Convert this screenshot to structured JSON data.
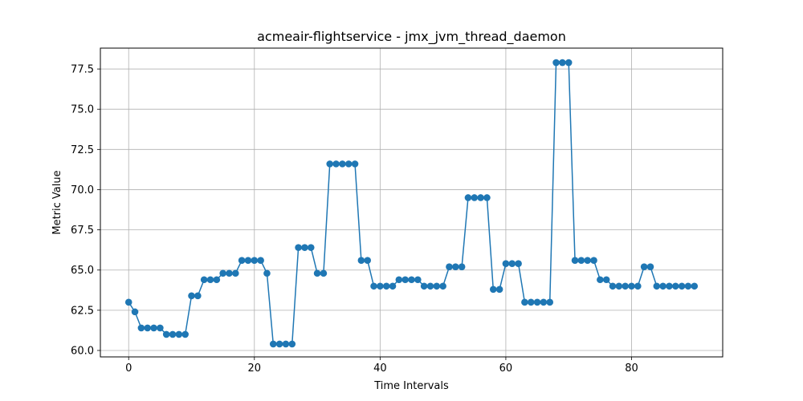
{
  "chart_data": {
    "type": "line",
    "title": "acmeair-flightservice - jmx_jvm_thread_daemon",
    "xlabel": "Time Intervals",
    "ylabel": "Metric Value",
    "xlim": [
      -4.5,
      94.5
    ],
    "ylim": [
      59.6,
      78.8
    ],
    "xticks": [
      0,
      20,
      40,
      60,
      80
    ],
    "yticks": [
      60.0,
      62.5,
      65.0,
      67.5,
      70.0,
      72.5,
      75.0,
      77.5
    ],
    "xtick_labels": [
      "0",
      "20",
      "40",
      "60",
      "80"
    ],
    "ytick_labels": [
      "60.0",
      "62.5",
      "65.0",
      "67.5",
      "70.0",
      "72.5",
      "75.0",
      "77.5"
    ],
    "grid": true,
    "marker": "circle",
    "line_color": "#1f77b4",
    "series": [
      {
        "x": [
          0,
          1,
          2,
          3,
          4,
          5,
          6,
          7,
          8,
          9,
          10,
          11,
          12,
          13,
          14,
          15,
          16,
          17,
          18,
          19,
          20,
          21,
          22,
          23,
          24,
          25,
          26,
          27,
          28,
          29,
          30,
          31,
          32,
          33,
          34,
          35,
          36,
          37,
          38,
          39,
          40,
          41,
          42,
          43,
          44,
          45,
          46,
          47,
          48,
          49,
          50,
          51,
          52,
          53,
          54,
          55,
          56,
          57,
          58,
          59,
          60,
          61,
          62,
          63,
          64,
          65,
          66,
          67,
          68,
          69,
          70,
          71,
          72,
          73,
          74,
          75,
          76,
          77,
          78,
          79,
          80,
          81,
          82,
          83,
          84,
          85,
          86,
          87,
          88,
          89,
          90
        ],
        "values": [
          63.0,
          62.4,
          61.4,
          61.4,
          61.4,
          61.4,
          61.0,
          61.0,
          61.0,
          61.0,
          63.4,
          63.4,
          64.4,
          64.4,
          64.4,
          64.8,
          64.8,
          64.8,
          65.6,
          65.6,
          65.6,
          65.6,
          64.8,
          60.4,
          60.4,
          60.4,
          60.4,
          66.4,
          66.4,
          66.4,
          64.8,
          64.8,
          71.6,
          71.6,
          71.6,
          71.6,
          71.6,
          65.6,
          65.6,
          64.0,
          64.0,
          64.0,
          64.0,
          64.4,
          64.4,
          64.4,
          64.4,
          64.0,
          64.0,
          64.0,
          64.0,
          65.2,
          65.2,
          65.2,
          69.5,
          69.5,
          69.5,
          69.5,
          63.8,
          63.8,
          65.4,
          65.4,
          65.4,
          63.0,
          63.0,
          63.0,
          63.0,
          63.0,
          77.9,
          77.9,
          77.9,
          65.6,
          65.6,
          65.6,
          65.6,
          64.4,
          64.4,
          64.0,
          64.0,
          64.0,
          64.0,
          64.0,
          65.2,
          65.2,
          64.0,
          64.0,
          64.0,
          64.0,
          64.0,
          64.0,
          64.0
        ]
      }
    ]
  }
}
